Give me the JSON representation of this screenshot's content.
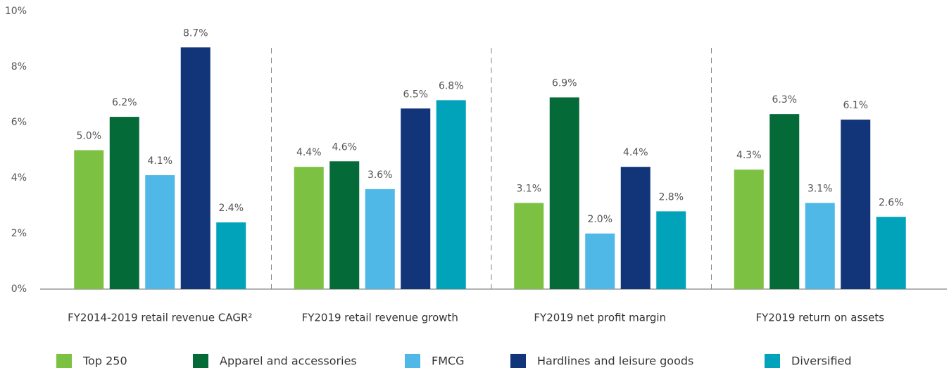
{
  "chart_data": {
    "type": "bar",
    "categories": [
      "FY2014-2019 retail revenue CAGR²",
      "FY2019 retail revenue growth",
      "FY2019 net profit margin",
      "FY2019 return on assets"
    ],
    "series": [
      {
        "name": "Top 250",
        "color": "#7dc142",
        "values": [
          5.0,
          4.4,
          3.1,
          4.3
        ],
        "value_labels": [
          "5.0%",
          "4.4%",
          "3.1%",
          "4.3%"
        ]
      },
      {
        "name": "Apparel and accessories",
        "color": "#046a38",
        "values": [
          6.2,
          4.6,
          6.9,
          6.3
        ],
        "value_labels": [
          "6.2%",
          "4.6%",
          "6.9%",
          "6.3%"
        ]
      },
      {
        "name": "FMCG",
        "color": "#4fb8e6",
        "values": [
          4.1,
          3.6,
          2.0,
          3.1
        ],
        "value_labels": [
          "4.1%",
          "3.6%",
          "2.0%",
          "3.1%"
        ]
      },
      {
        "name": "Hardlines and leisure goods",
        "color": "#12357a",
        "values": [
          8.7,
          6.5,
          4.4,
          6.1
        ],
        "value_labels": [
          "8.7%",
          "6.5%",
          "4.4%",
          "6.1%"
        ]
      },
      {
        "name": "Diversified",
        "color": "#00a3b9",
        "values": [
          2.4,
          6.8,
          2.8,
          2.6
        ],
        "value_labels": [
          "2.4%",
          "6.8%",
          "2.8%",
          "2.6%"
        ]
      }
    ],
    "ylim": [
      0,
      10
    ],
    "yticks": [
      {
        "value": 0,
        "label": "0%"
      },
      {
        "value": 2,
        "label": "2%"
      },
      {
        "value": 4,
        "label": "4%"
      },
      {
        "value": 6,
        "label": "6%"
      },
      {
        "value": 8,
        "label": "8%"
      },
      {
        "value": 10,
        "label": "10%"
      }
    ],
    "grid": false,
    "legend": "bottom"
  }
}
